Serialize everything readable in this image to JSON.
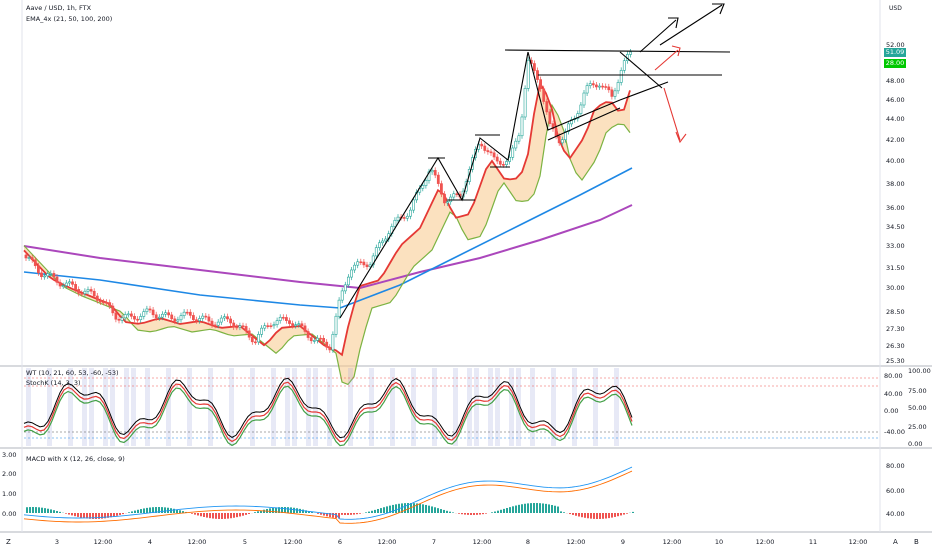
{
  "header": {
    "symbol_line": "Aave / USD, 1h, FTX",
    "indicator_line": "EMA_4x (21, 50, 100, 200)",
    "currency_badge": "USD"
  },
  "price_axis": {
    "labels": [
      "52.00",
      "50.00",
      "48.00",
      "46.00",
      "44.00",
      "42.00",
      "40.00",
      "38.00",
      "36.00",
      "34.50",
      "33.00",
      "31.50",
      "30.00",
      "28.50",
      "27.30",
      "26.30",
      "25.30"
    ],
    "last_price": "51.09",
    "level_28": "28.00",
    "badge_color_last": "#26a69a",
    "badge_color_level": "#00e000"
  },
  "wt_panel": {
    "legend_wt": "WT (10, 21, 60, 53, -60, -53)",
    "legend_stoch": "StochK (14, 3, 3)",
    "right_axis": [
      "80.00",
      "40.00",
      "0.00",
      "-40.00"
    ],
    "right_axis2": [
      "100.00",
      "75.00",
      "50.00",
      "25.00",
      "0.00"
    ]
  },
  "macd_panel": {
    "legend": "MACD with X (12, 26, close, 9)",
    "left_axis": [
      "3.00",
      "2.00",
      "1.00",
      "0.00"
    ],
    "right_axis": [
      "80.00",
      "60.00",
      "40.00"
    ]
  },
  "time_axis": {
    "labels": [
      "3",
      "12:00",
      "4",
      "12:00",
      "5",
      "12:00",
      "6",
      "12:00",
      "7",
      "12:00",
      "8",
      "12:00",
      "9",
      "12:00",
      "10",
      "12:00",
      "11",
      "12:00"
    ],
    "corner_left": "Z",
    "corner_right_a": "A",
    "corner_right_b": "B"
  },
  "colors": {
    "up": "#26a69a",
    "down": "#ef5350",
    "ema21": "#e53935",
    "ema50": "#7cb342",
    "ema100": "#1e88e5",
    "ema200": "#ab47bc",
    "cloud": "#f8c98a"
  }
}
